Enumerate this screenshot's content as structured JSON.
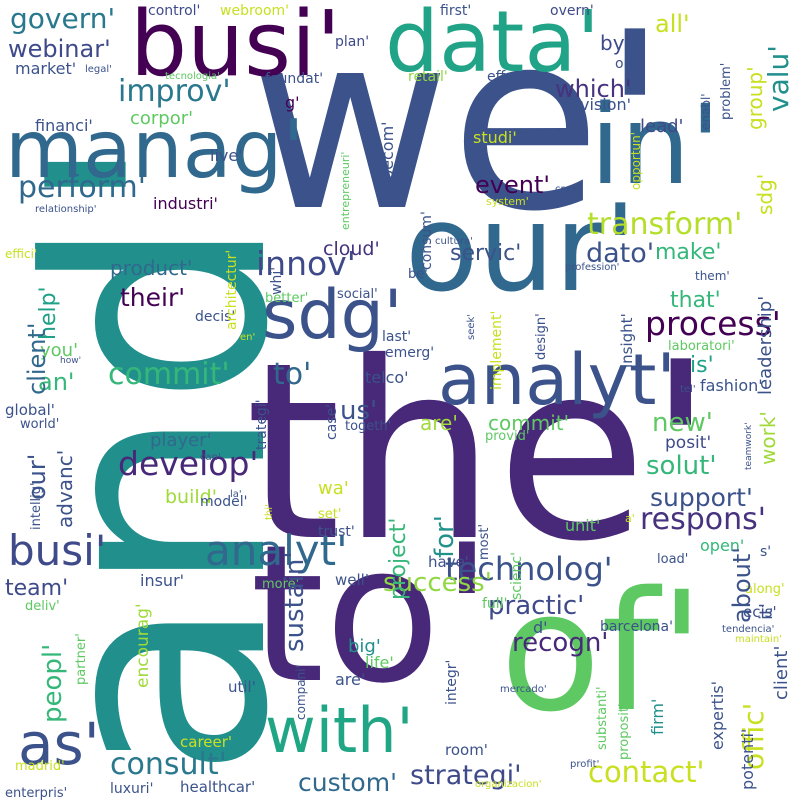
{
  "palette": {
    "background": "#ffffff",
    "dark_purple": "#440154",
    "indigo": "#3b528b",
    "blue": "#31688e",
    "teal": "#21918c",
    "green": "#35b779",
    "light_green": "#5ec962",
    "lime": "#90d743",
    "yellow": "#c8e020"
  },
  "words": [
    {
      "text": "and'",
      "color": "#21908c"
    },
    {
      "text": "we'",
      "color": "#3b528b"
    },
    {
      "text": "the'",
      "color": "#482878"
    },
    {
      "text": "to'",
      "color": "#482878"
    },
    {
      "text": "of'",
      "color": "#5ec962"
    },
    {
      "text": "our'",
      "color": "#31688e"
    },
    {
      "text": "in'",
      "color": "#31688e"
    },
    {
      "text": "busi'",
      "color": "#440154"
    },
    {
      "text": "data'",
      "color": "#20a386"
    },
    {
      "text": "manag'",
      "color": "#31688e"
    },
    {
      "text": "sdg'",
      "color": "#3b528b"
    },
    {
      "text": "analyt'",
      "color": "#3b528b"
    },
    {
      "text": "with'",
      "color": "#21a685"
    },
    {
      "text": "as'",
      "color": "#3b528b"
    },
    {
      "text": "busi'",
      "color": "#3e4a89"
    },
    {
      "text": "analyt'",
      "color": "#31688e"
    },
    {
      "text": "technolog'",
      "color": "#3b528b"
    },
    {
      "text": "develop'",
      "color": "#482878"
    },
    {
      "text": "commit'",
      "color": "#35b779"
    },
    {
      "text": "to'",
      "color": "#31688e"
    },
    {
      "text": "process'",
      "color": "#440154"
    },
    {
      "text": "respons'",
      "color": "#46327e"
    },
    {
      "text": "innov'",
      "color": "#3e4a89"
    },
    {
      "text": "transform'",
      "color": "#b5de2b"
    },
    {
      "text": "perform'",
      "color": "#31688e"
    },
    {
      "text": "improv'",
      "color": "#2a788e"
    },
    {
      "text": "govern'",
      "color": "#2a788e"
    },
    {
      "text": "webinar'",
      "color": "#3e4a89"
    },
    {
      "text": "consult'",
      "color": "#2a788e"
    },
    {
      "text": "contact'",
      "color": "#c8e020"
    },
    {
      "text": "strategi'",
      "color": "#3e4a89"
    },
    {
      "text": "custom'",
      "color": "#31688e"
    },
    {
      "text": "success'",
      "color": "#90d743"
    },
    {
      "text": "practic'",
      "color": "#3e4a89"
    },
    {
      "text": "recogn'",
      "color": "#482878"
    },
    {
      "text": "solut'",
      "color": "#35b779"
    },
    {
      "text": "support'",
      "color": "#3b528b"
    },
    {
      "text": "event'",
      "color": "#440154"
    },
    {
      "text": "dato'",
      "color": "#3b528b"
    },
    {
      "text": "servic'",
      "color": "#3b528b"
    },
    {
      "text": "their'",
      "color": "#440154"
    },
    {
      "text": "product'",
      "color": "#31688e"
    },
    {
      "text": "which'",
      "color": "#46327e"
    },
    {
      "text": "make'",
      "color": "#35b779"
    },
    {
      "text": "that'",
      "color": "#35b779"
    },
    {
      "text": "new'",
      "color": "#5ec962"
    },
    {
      "text": "us'",
      "color": "#3b528b"
    },
    {
      "text": "an'",
      "color": "#35b779"
    },
    {
      "text": "cloud'",
      "color": "#46327e"
    },
    {
      "text": "team'",
      "color": "#3e4a89"
    },
    {
      "text": "all'",
      "color": "#c8e020"
    },
    {
      "text": "by'",
      "color": "#3e4a89"
    },
    {
      "text": "is'",
      "color": "#1fa187"
    },
    {
      "text": "for'",
      "color": "#21918c"
    },
    {
      "text": "are'",
      "color": "#a0da39"
    },
    {
      "text": "commit'",
      "color": "#5ec962"
    },
    {
      "text": "player'",
      "color": "#31688e"
    },
    {
      "text": "build'",
      "color": "#a0da39"
    },
    {
      "text": "wa'",
      "color": "#c8e020"
    },
    {
      "text": "posit'",
      "color": "#3e4a89"
    },
    {
      "text": "lead'",
      "color": "#3e4a89"
    },
    {
      "text": "corpor'",
      "color": "#5ec962"
    },
    {
      "text": "market'",
      "color": "#3b528b"
    },
    {
      "text": "financi'",
      "color": "#3b528b"
    },
    {
      "text": "live'",
      "color": "#3b528b"
    },
    {
      "text": "industri'",
      "color": "#440154"
    },
    {
      "text": "studi'",
      "color": "#c8e020"
    },
    {
      "text": "vision'",
      "color": "#3b528b"
    },
    {
      "text": "retail'",
      "color": "#90d743"
    },
    {
      "text": "effect'",
      "color": "#3b528b"
    },
    {
      "text": "foundat'",
      "color": "#3b528b"
    },
    {
      "text": "g'",
      "color": "#440154"
    },
    {
      "text": "plan'",
      "color": "#3e4a89"
    },
    {
      "text": "control'",
      "color": "#3e4a89"
    },
    {
      "text": "webroom'",
      "color": "#c8e020"
    },
    {
      "text": "first'",
      "color": "#3b528b"
    },
    {
      "text": "overn'",
      "color": "#3e4a89"
    },
    {
      "text": "on'",
      "color": "#3b528b"
    },
    {
      "text": "help'",
      "color": "#1fa187"
    },
    {
      "text": "you'",
      "color": "#5ec962"
    },
    {
      "text": "global'",
      "color": "#3b528b"
    },
    {
      "text": "world'",
      "color": "#3b528b"
    },
    {
      "text": "intellig'",
      "color": "#3b528b"
    },
    {
      "text": "decis'",
      "color": "#3b528b"
    },
    {
      "text": "better'",
      "color": "#5ec962"
    },
    {
      "text": "social'",
      "color": "#3b528b"
    },
    {
      "text": "be'",
      "color": "#3b528b"
    },
    {
      "text": "last'",
      "color": "#3b528b"
    },
    {
      "text": "emerg'",
      "color": "#3b528b"
    },
    {
      "text": "telco'",
      "color": "#3b528b"
    },
    {
      "text": "laboratori'",
      "color": "#5ec962"
    },
    {
      "text": "fashion'",
      "color": "#3b528b"
    },
    {
      "text": "insight'",
      "color": "#3b528b"
    },
    {
      "text": "design'",
      "color": "#3b528b"
    },
    {
      "text": "model'",
      "color": "#3b528b"
    },
    {
      "text": "trust'",
      "color": "#3b528b"
    },
    {
      "text": "togeth'",
      "color": "#3b528b"
    },
    {
      "text": "provid'",
      "color": "#5ec962"
    },
    {
      "text": "unit'",
      "color": "#5ec962"
    },
    {
      "text": "open'",
      "color": "#35b779"
    },
    {
      "text": "have'",
      "color": "#3b528b"
    },
    {
      "text": "set'",
      "color": "#c8e020"
    },
    {
      "text": "insur'",
      "color": "#3b528b"
    },
    {
      "text": "well'",
      "color": "#3b528b"
    },
    {
      "text": "more'",
      "color": "#5ec962"
    },
    {
      "text": "full'",
      "color": "#5ec962"
    },
    {
      "text": "ecis'",
      "color": "#3b528b"
    },
    {
      "text": "along'",
      "color": "#c8e020"
    },
    {
      "text": "load'",
      "color": "#3b528b"
    },
    {
      "text": "barcelona'",
      "color": "#3b528b"
    },
    {
      "text": "big'",
      "color": "#21908c"
    },
    {
      "text": "life'",
      "color": "#5ec962"
    },
    {
      "text": "are'",
      "color": "#3b528b"
    },
    {
      "text": "util'",
      "color": "#3b528b"
    },
    {
      "text": "career'",
      "color": "#c8e020"
    },
    {
      "text": "room'",
      "color": "#3b528b"
    },
    {
      "text": "firm'",
      "color": "#21908c"
    },
    {
      "text": "healthcar'",
      "color": "#3b528b"
    },
    {
      "text": "luxuri'",
      "color": "#3b528b"
    },
    {
      "text": "enterpris'",
      "color": "#3b528b"
    },
    {
      "text": "madrid'",
      "color": "#c8e020"
    },
    {
      "text": "deliv'",
      "color": "#5ec962"
    },
    {
      "text": "partner'",
      "color": "#5ec962"
    },
    {
      "text": "encourag'",
      "color": "#a0da39"
    },
    {
      "text": "peopl'",
      "color": "#35b779"
    },
    {
      "text": "sustain'",
      "color": "#3b528b"
    },
    {
      "text": "project'",
      "color": "#35b779"
    },
    {
      "text": "our'",
      "color": "#3b528b"
    },
    {
      "text": "client'",
      "color": "#31688e"
    },
    {
      "text": "advanc'",
      "color": "#3b528b"
    },
    {
      "text": "about'",
      "color": "#3b528b"
    },
    {
      "text": "offic'",
      "color": "#c8e020"
    },
    {
      "text": "work'",
      "color": "#a0da39"
    },
    {
      "text": "leadership'",
      "color": "#3b528b"
    },
    {
      "text": "sdg'",
      "color": "#c8e020"
    },
    {
      "text": "group'",
      "color": "#c8e020"
    },
    {
      "text": "valu'",
      "color": "#21908c"
    },
    {
      "text": "it'",
      "color": "#3b528b"
    },
    {
      "text": "client'",
      "color": "#3b528b"
    },
    {
      "text": "expertis'",
      "color": "#3b528b"
    },
    {
      "text": "potenti'",
      "color": "#3b528b"
    },
    {
      "text": "consum'",
      "color": "#3b528b"
    },
    {
      "text": "becom'",
      "color": "#3b528b"
    },
    {
      "text": "case'",
      "color": "#3b528b"
    },
    {
      "text": "trategi'",
      "color": "#3b528b"
    },
    {
      "text": "architectur'",
      "color": "#c8e020"
    },
    {
      "text": "whi'",
      "color": "#3b528b"
    },
    {
      "text": "implement'",
      "color": "#c8e020"
    },
    {
      "text": "scienc'",
      "color": "#5ec962"
    },
    {
      "text": "integr'",
      "color": "#3b528b"
    },
    {
      "text": "compani'",
      "color": "#3b528b"
    },
    {
      "text": "substanti'",
      "color": "#5ec962"
    },
    {
      "text": "proposit'",
      "color": "#5ec962"
    },
    {
      "text": "most'",
      "color": "#3b528b"
    },
    {
      "text": "d'",
      "color": "#3b528b"
    },
    {
      "text": "s'",
      "color": "#3b528b"
    },
    {
      "text": "problem'",
      "color": "#3b528b"
    },
    {
      "text": "enabl'",
      "color": "#3b528b"
    },
    {
      "text": "opportun'",
      "color": "#c8e020"
    },
    {
      "text": "creat'",
      "color": "#3b528b"
    },
    {
      "text": "system'",
      "color": "#c8e020"
    },
    {
      "text": "entrepreneuri'",
      "color": "#5ec962"
    },
    {
      "text": "relationship'",
      "color": "#3b528b"
    },
    {
      "text": "effici'",
      "color": "#c8e020"
    },
    {
      "text": "legal'",
      "color": "#3b528b"
    },
    {
      "text": "tecnologia'",
      "color": "#5ec962"
    },
    {
      "text": "cultura'",
      "color": "#3b528b"
    },
    {
      "text": "profession'",
      "color": "#3b528b"
    },
    {
      "text": "them'",
      "color": "#3b528b"
    },
    {
      "text": "seek'",
      "color": "#3b528b"
    },
    {
      "text": "how'",
      "color": "#3b528b"
    },
    {
      "text": "en'",
      "color": "#c8e020"
    },
    {
      "text": "tel'",
      "color": "#3b528b"
    },
    {
      "text": "teamwork'",
      "color": "#3b528b"
    },
    {
      "text": "can'",
      "color": "#3b528b"
    },
    {
      "text": "la'",
      "color": "#3b528b"
    },
    {
      "text": "thi'",
      "color": "#c8e020"
    },
    {
      "text": "maintain'",
      "color": "#c8e020"
    },
    {
      "text": "tendencia'",
      "color": "#3b528b"
    },
    {
      "text": "mercado'",
      "color": "#3b528b"
    },
    {
      "text": "profit'",
      "color": "#3b528b"
    },
    {
      "text": "organizacion'",
      "color": "#c8e020"
    },
    {
      "text": "a'",
      "color": "#c8e020"
    }
  ]
}
